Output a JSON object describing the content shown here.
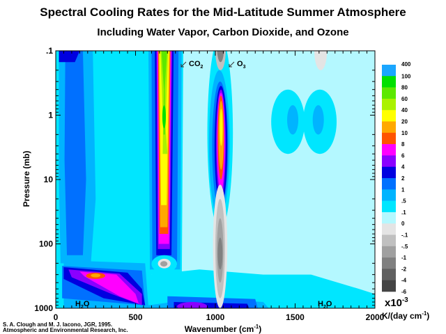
{
  "chart_data": {
    "type": "heatmap",
    "subtype": "filled-contour",
    "title": "Spectral Cooling Rates for the Mid-Latitude Summer Atmosphere",
    "subtitle": "Including Water Vapor, Carbon Dioxide, and Ozone",
    "xlabel": "Wavenumber (cm",
    "xlabel_sup": "-1",
    "xlabel_end": ")",
    "ylabel": "Pressure (mb)",
    "xlim": [
      0,
      2000
    ],
    "ylim": [
      1000,
      0.1
    ],
    "y_scale": "log",
    "y_inverted": true,
    "x_ticks": [
      "0",
      "500",
      "1000",
      "1500",
      "2000"
    ],
    "y_ticks": [
      ".1",
      "1",
      "10",
      "100",
      "1000"
    ],
    "grid": false,
    "colorbar": {
      "levels": [
        "400",
        "100",
        "80",
        "60",
        "40",
        "20",
        "10",
        "8",
        "6",
        "4",
        "2",
        "1",
        ".5",
        ".1",
        "0",
        "-.1",
        "-.5",
        "-1",
        "-2",
        "-4",
        "-6"
      ],
      "colors": [
        "#1aa6ff",
        "#00e000",
        "#5ce800",
        "#aaf200",
        "#ffff00",
        "#ffa800",
        "#ff5400",
        "#ff00ff",
        "#8a00ff",
        "#0000e0",
        "#0070ff",
        "#00b4ff",
        "#00e6ff",
        "#b4f8ff",
        "#b4f8ff",
        "#e4e4e4",
        "#c0c0c0",
        "#a0a0a0",
        "#808080",
        "#606060",
        "#444444"
      ],
      "multiplier": "x10",
      "multiplier_sup": "-3",
      "unit": "K/(day cm",
      "unit_sup": "-1",
      "unit_end": ")",
      "placement": "right"
    },
    "annotations": [
      {
        "text": "CO",
        "sub": "2",
        "x": 667,
        "y": 0.2
      },
      {
        "text": "O",
        "sub": "3",
        "x": 1040,
        "y": 0.2
      },
      {
        "text": "H",
        "sub": "2",
        "end": "O",
        "x": 150,
        "y": 800
      },
      {
        "text": "H",
        "sub": "2",
        "end": "O",
        "x": 1700,
        "y": 800
      }
    ]
  },
  "credit": {
    "line1": "S. A. Clough and M. J. Iacono, JGR, 1995.",
    "line2": "Atmospheric and Environmental Research, Inc."
  }
}
